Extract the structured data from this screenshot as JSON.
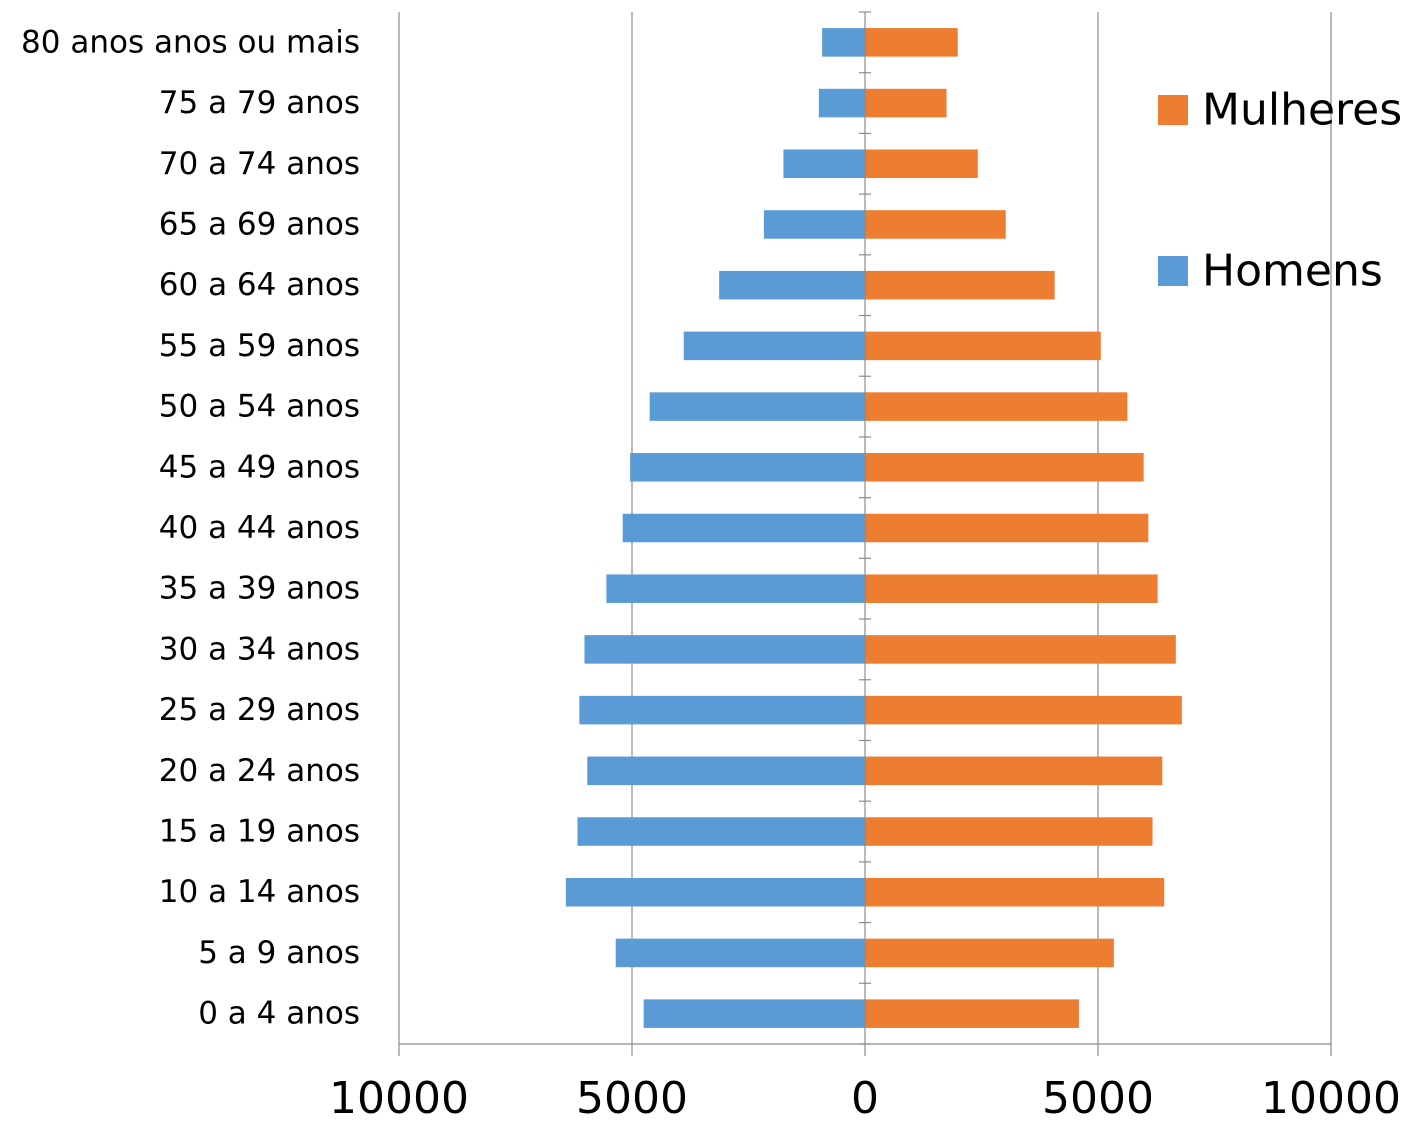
{
  "chart_data": {
    "type": "bar",
    "orientation": "horizontal",
    "layout": "population-pyramid",
    "categories": [
      "0 a 4 anos",
      "5 a 9 anos",
      "10 a 14 anos",
      "15 a 19 anos",
      "20 a 24 anos",
      "25 a 29 anos",
      "30 a 34 anos",
      "35 a 39 anos",
      "40 a 44 anos",
      "45 a 49 anos",
      "50 a 54 anos",
      "55 a 59 anos",
      "60 a 64 anos",
      "65 a 69 anos",
      "70 a 74 anos",
      "75 a 79 anos",
      "80 anos anos ou mais"
    ],
    "series": [
      {
        "name": "Homens",
        "color": "#5B9BD5",
        "side": "left",
        "values": [
          4750,
          5350,
          6420,
          6170,
          5960,
          6130,
          6020,
          5550,
          5200,
          5040,
          4620,
          3890,
          3130,
          2170,
          1750,
          990,
          920
        ]
      },
      {
        "name": "Mulheres",
        "color": "#ED7D31",
        "side": "right",
        "values": [
          4590,
          5340,
          6420,
          6170,
          6380,
          6800,
          6670,
          6280,
          6080,
          5980,
          5630,
          5060,
          4070,
          3020,
          2420,
          1750,
          1990
        ]
      }
    ],
    "xlim": [
      -10000,
      10000
    ],
    "xticks": [
      -10000,
      -5000,
      0,
      5000,
      10000
    ],
    "xtick_labels": [
      "10000",
      "5000",
      "0",
      "5000",
      "10000"
    ],
    "grid": "vertical",
    "legend": {
      "position": "top-right",
      "order": [
        "Mulheres",
        "Homens"
      ]
    },
    "title": "",
    "xlabel": "",
    "ylabel": ""
  }
}
